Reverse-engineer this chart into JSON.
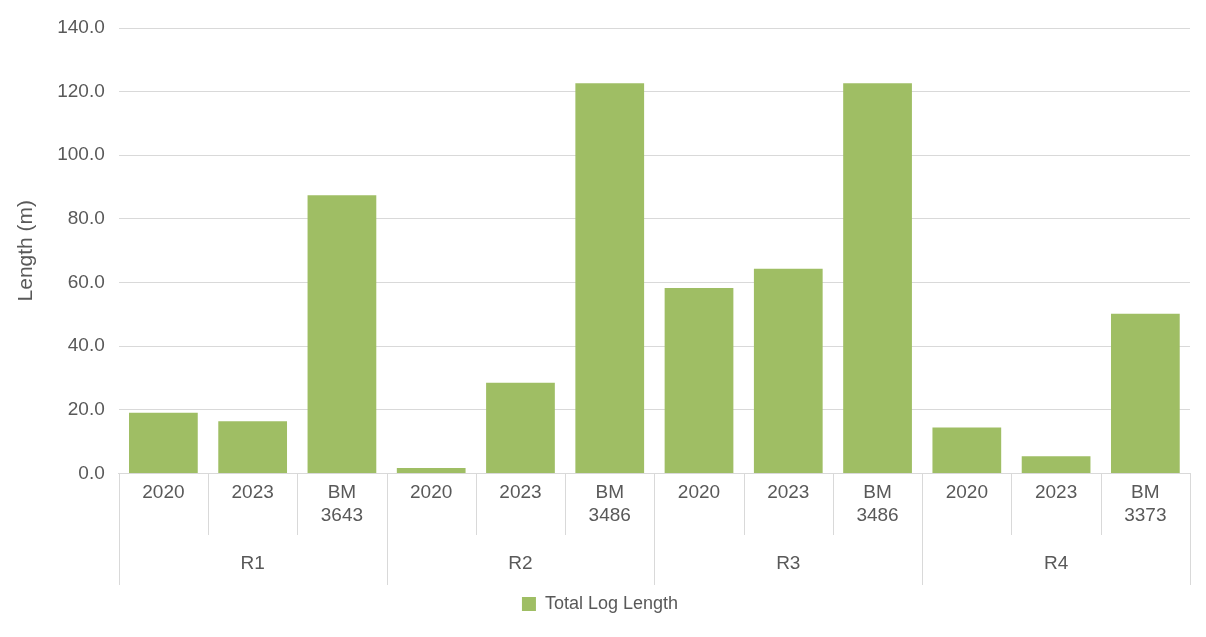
{
  "chart_data": {
    "type": "bar",
    "ylabel": "Length (m)",
    "categories": [
      "2020",
      "2023",
      "BM 3643",
      "2020",
      "2023",
      "BM 3486",
      "2020",
      "2023",
      "BM 3486",
      "2020",
      "2023",
      "BM 3373"
    ],
    "series": [
      {
        "name": "Total Log Length",
        "color": "#9fbe64",
        "values": [
          19.1,
          16.4,
          87.4,
          1.7,
          28.5,
          122.6,
          58.3,
          64.3,
          122.6,
          14.4,
          5.4,
          50.2
        ]
      }
    ],
    "annotations": [
      "R1",
      "R2",
      "R3",
      "R4"
    ],
    "ylim": [
      0,
      140
    ],
    "yticks": [
      {
        "value": 0,
        "label": "0.0"
      },
      {
        "value": 20,
        "label": "20.0"
      },
      {
        "value": 40,
        "label": "40.0"
      },
      {
        "value": 60,
        "label": "60.0"
      },
      {
        "value": 80,
        "label": "80.0"
      },
      {
        "value": 100,
        "label": "100.0"
      },
      {
        "value": 120,
        "label": "120.0"
      },
      {
        "value": 140,
        "label": "140.0"
      }
    ],
    "grid": "y",
    "legend": "bottom"
  }
}
